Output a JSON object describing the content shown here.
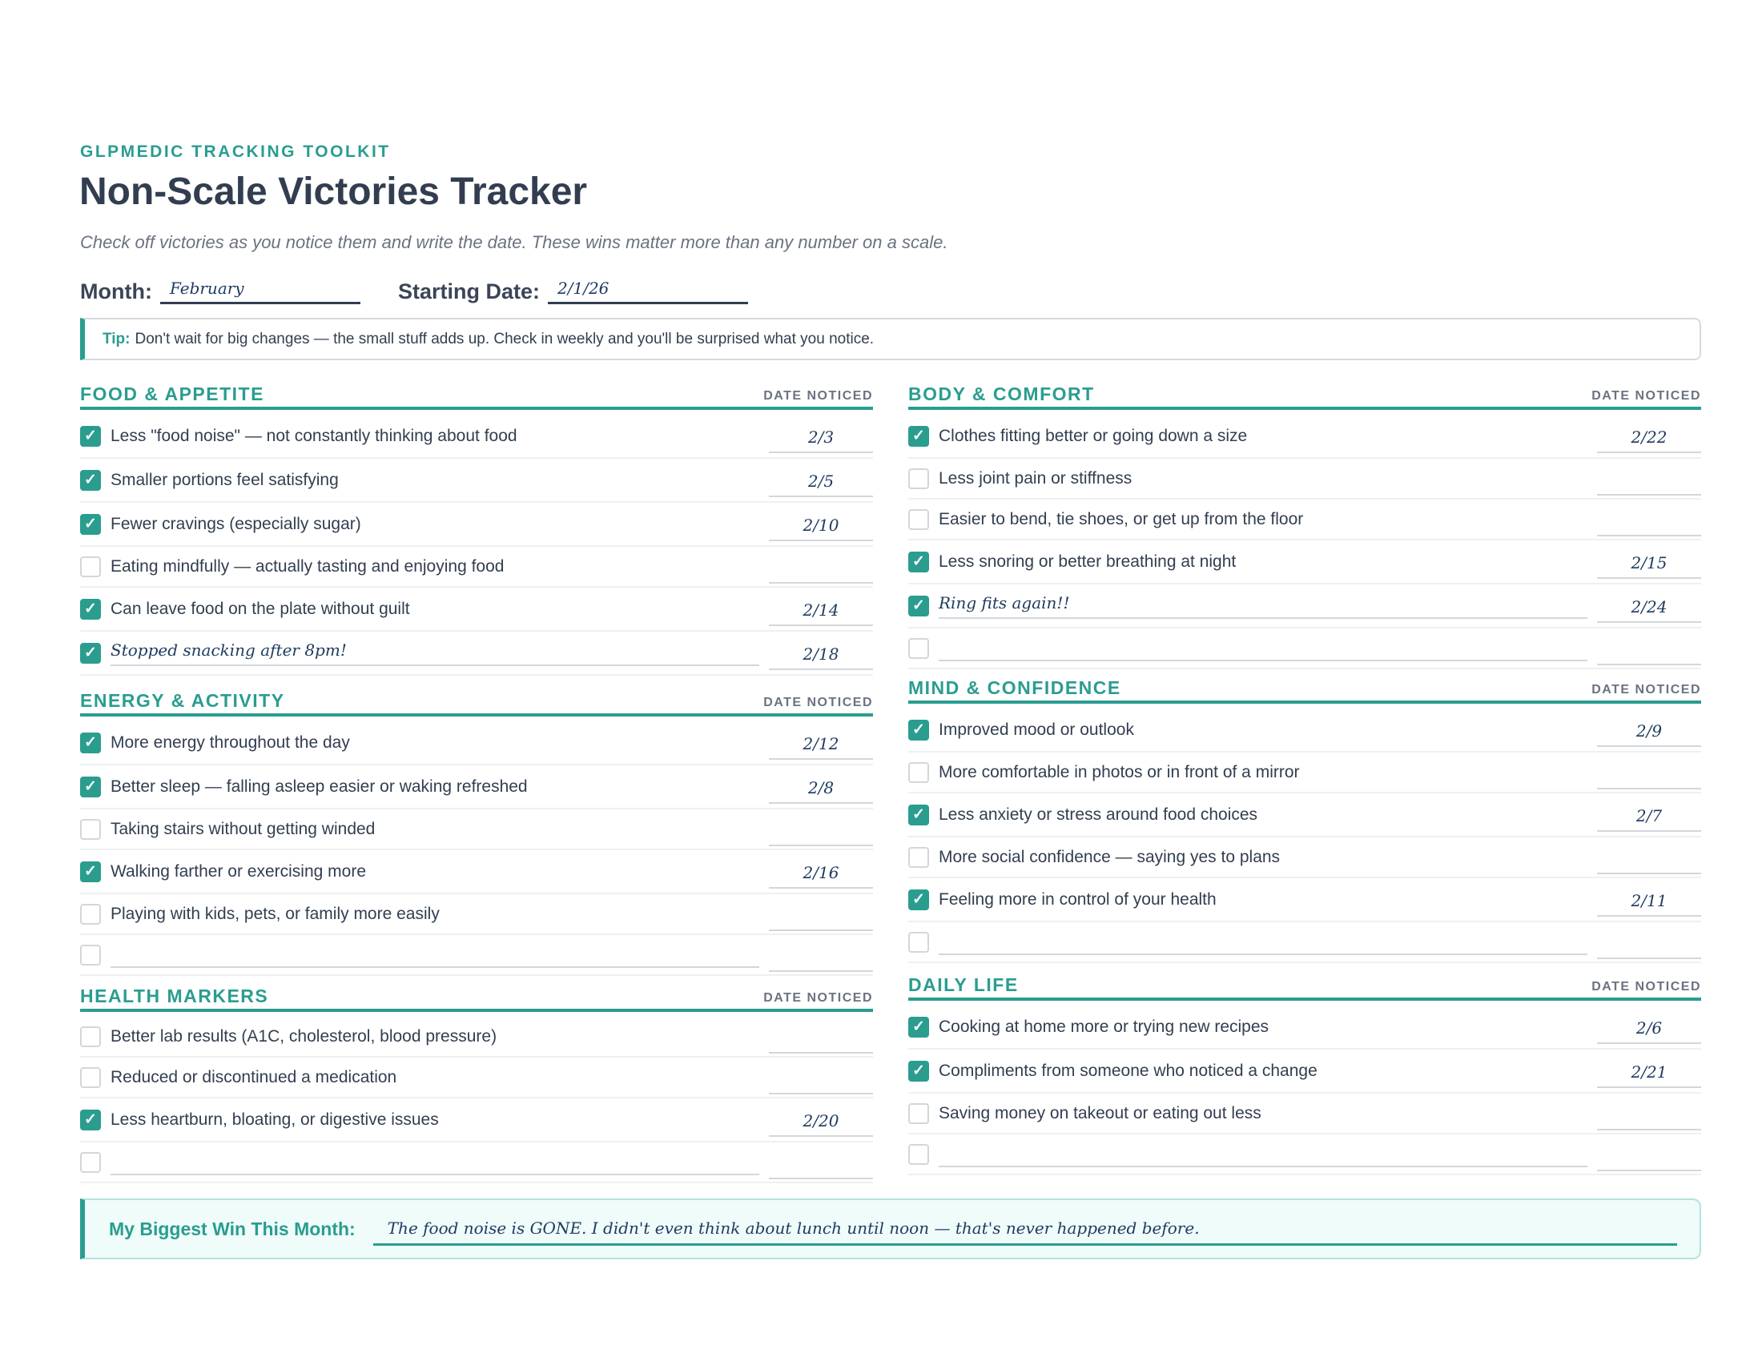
{
  "header": {
    "kicker": "GLPMEDIC TRACKING TOOLKIT",
    "title": "Non-Scale Victories Tracker",
    "subtitle": "Check off victories as you notice them and write the date. These wins matter more than any number on a scale.",
    "month_label": "Month:",
    "month_value": "February",
    "start_label": "Starting Date:",
    "start_value": "2/1/26"
  },
  "tip": {
    "label": "Tip:",
    "text": "Don't wait for big changes — the small stuff adds up. Check in weekly and you'll be surprised what you notice."
  },
  "colors": {
    "accent": "#2a9d8f",
    "heading": "#323e50",
    "handwriting": "#1e3a5f"
  },
  "sections": [
    {
      "title": "FOOD & APPETITE",
      "date_header": "DATE NOTICED",
      "items": [
        {
          "label": "Less \"food noise\" — not constantly thinking about food",
          "checked": true,
          "date": "2/3"
        },
        {
          "label": "Smaller portions feel satisfying",
          "checked": true,
          "date": "2/5"
        },
        {
          "label": "Fewer cravings (especially sugar)",
          "checked": true,
          "date": "2/10"
        },
        {
          "label": "Eating mindfully — actually tasting and enjoying food",
          "checked": false,
          "date": ""
        },
        {
          "label": "Can leave food on the plate without guilt",
          "checked": true,
          "date": "2/14"
        },
        {
          "label": "Stopped snacking after 8pm!",
          "checked": true,
          "date": "2/18",
          "custom": true
        }
      ]
    },
    {
      "title": "ENERGY & ACTIVITY",
      "date_header": "DATE NOTICED",
      "items": [
        {
          "label": "More energy throughout the day",
          "checked": true,
          "date": "2/12"
        },
        {
          "label": "Better sleep — falling asleep easier or waking refreshed",
          "checked": true,
          "date": "2/8"
        },
        {
          "label": "Taking stairs without getting winded",
          "checked": false,
          "date": ""
        },
        {
          "label": "Walking farther or exercising more",
          "checked": true,
          "date": "2/16"
        },
        {
          "label": "Playing with kids, pets, or family more easily",
          "checked": false,
          "date": ""
        },
        {
          "label": "",
          "checked": false,
          "date": "",
          "custom": true
        }
      ]
    },
    {
      "title": "HEALTH MARKERS",
      "date_header": "DATE NOTICED",
      "items": [
        {
          "label": "Better lab results (A1C, cholesterol, blood pressure)",
          "checked": false,
          "date": ""
        },
        {
          "label": "Reduced or discontinued a medication",
          "checked": false,
          "date": ""
        },
        {
          "label": "Less heartburn, bloating, or digestive issues",
          "checked": true,
          "date": "2/20"
        },
        {
          "label": "",
          "checked": false,
          "date": "",
          "custom": true
        }
      ]
    },
    {
      "title": "BODY & COMFORT",
      "date_header": "DATE NOTICED",
      "items": [
        {
          "label": "Clothes fitting better or going down a size",
          "checked": true,
          "date": "2/22"
        },
        {
          "label": "Less joint pain or stiffness",
          "checked": false,
          "date": ""
        },
        {
          "label": "Easier to bend, tie shoes, or get up from the floor",
          "checked": false,
          "date": ""
        },
        {
          "label": "Less snoring or better breathing at night",
          "checked": true,
          "date": "2/15"
        },
        {
          "label": "Ring fits again!!",
          "checked": true,
          "date": "2/24",
          "custom": true
        },
        {
          "label": "",
          "checked": false,
          "date": "",
          "custom": true
        }
      ]
    },
    {
      "title": "MIND & CONFIDENCE",
      "date_header": "DATE NOTICED",
      "items": [
        {
          "label": "Improved mood or outlook",
          "checked": true,
          "date": "2/9"
        },
        {
          "label": "More comfortable in photos or in front of a mirror",
          "checked": false,
          "date": ""
        },
        {
          "label": "Less anxiety or stress around food choices",
          "checked": true,
          "date": "2/7"
        },
        {
          "label": "More social confidence — saying yes to plans",
          "checked": false,
          "date": ""
        },
        {
          "label": "Feeling more in control of your health",
          "checked": true,
          "date": "2/11"
        },
        {
          "label": "",
          "checked": false,
          "date": "",
          "custom": true
        }
      ]
    },
    {
      "title": "DAILY LIFE",
      "date_header": "DATE NOTICED",
      "items": [
        {
          "label": "Cooking at home more or trying new recipes",
          "checked": true,
          "date": "2/6"
        },
        {
          "label": "Compliments from someone who noticed a change",
          "checked": true,
          "date": "2/21"
        },
        {
          "label": "Saving money on takeout or eating out less",
          "checked": false,
          "date": ""
        },
        {
          "label": "",
          "checked": false,
          "date": "",
          "custom": true
        }
      ]
    }
  ],
  "biggest_win": {
    "label": "My Biggest Win This Month:",
    "value": "The food noise is GONE. I didn't even think about lunch until noon — that's never happened before."
  }
}
